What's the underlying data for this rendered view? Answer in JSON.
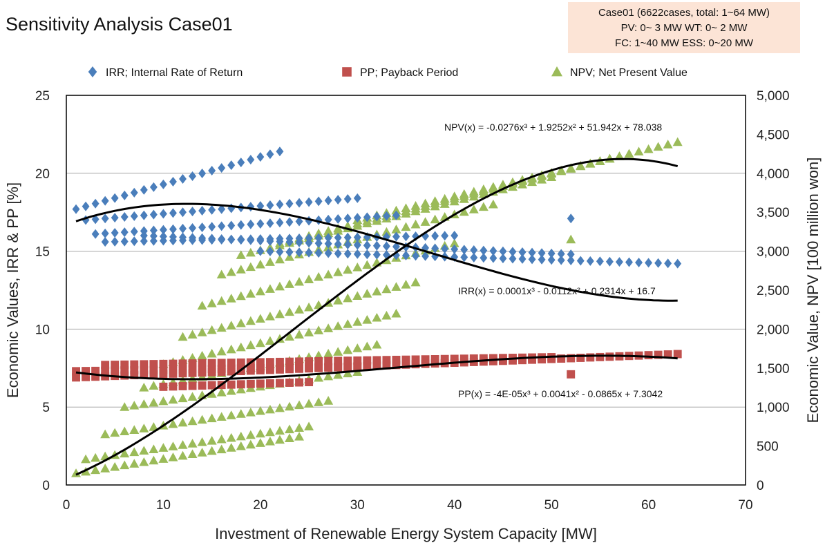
{
  "chart_data": {
    "type": "scatter",
    "title": "Sensitivity Analysis Case01",
    "xlabel": "Investment  of Renewable Energy System Capacity [MW]",
    "ylabel_left": "Economic Values, IRR & PP [%]",
    "ylabel_right": "Economic Value, NPV [100 million won]",
    "xlim": [
      0,
      70
    ],
    "xticks": [
      0,
      10,
      20,
      30,
      40,
      50,
      60,
      70
    ],
    "ylim_left": [
      0,
      25
    ],
    "yticks_left": [
      0,
      5,
      10,
      15,
      20,
      25
    ],
    "ylim_right": [
      0,
      5000
    ],
    "yticks_right": [
      "0",
      "500",
      "1,000",
      "1,500",
      "2,000",
      "2,500",
      "3,000",
      "3,500",
      "4,000",
      "4,500",
      "5,000"
    ],
    "grid": "horizontal",
    "legend_position": "top",
    "case_box": {
      "lines": [
        "Case01 (6622cases, total: 1~64 MW)",
        "PV: 0~ 3 MW      WT: 0~ 2 MW",
        "FC: 1~40 MW     ESS: 0~20 MW"
      ],
      "background": "#fce4d6"
    },
    "series": [
      {
        "name": "IRR; Internal Rate of Return",
        "axis": "left",
        "marker": "diamond",
        "color": "#4a7ebb",
        "bands": [
          {
            "x": [
              1,
              22
            ],
            "y": [
              17.7,
              21.4
            ]
          },
          {
            "x": [
              2,
              30
            ],
            "y": [
              17.0,
              18.4
            ]
          },
          {
            "x": [
              3,
              34
            ],
            "y": [
              16.1,
              17.3
            ]
          },
          {
            "x": [
              4,
              40
            ],
            "y": [
              15.6,
              16.0
            ]
          },
          {
            "x": [
              8,
              52
            ],
            "y": [
              16.0,
              14.8
            ]
          },
          {
            "x": [
              20,
              63
            ],
            "y": [
              15.0,
              14.2
            ]
          }
        ],
        "equation": "IRR(x) = 0.0001x³ - 0.0112x² + 0.2314x + 16.7",
        "fit": [
          0.0001,
          -0.0112,
          0.2314,
          16.7
        ],
        "outliers": [
          [
            52,
            17.1
          ]
        ]
      },
      {
        "name": "PP; Payback Period",
        "axis": "left",
        "marker": "square",
        "color": "#c0504d",
        "bands": [
          {
            "x": [
              1,
              63
            ],
            "y": [
              6.9,
              8.4
            ]
          },
          {
            "x": [
              1,
              30
            ],
            "y": [
              7.3,
              7.6
            ]
          },
          {
            "x": [
              4,
              50
            ],
            "y": [
              7.7,
              8.2
            ]
          },
          {
            "x": [
              10,
              25
            ],
            "y": [
              6.3,
              6.6
            ]
          }
        ],
        "equation": "PP(x) = -4E-05x³ + 0.0041x² - 0.0865x + 7.3042",
        "fit": [
          -4e-05,
          0.0041,
          -0.0865,
          7.3042
        ],
        "outliers": [
          [
            52,
            7.1
          ]
        ]
      },
      {
        "name": "NPV; Net Present Value",
        "axis": "right",
        "marker": "triangle",
        "color": "#9bbb59",
        "bands": [
          {
            "x": [
              1,
              24
            ],
            "y": [
              150,
              620
            ]
          },
          {
            "x": [
              2,
              25
            ],
            "y": [
              330,
              750
            ]
          },
          {
            "x": [
              4,
              27
            ],
            "y": [
              650,
              1080
            ]
          },
          {
            "x": [
              6,
              30
            ],
            "y": [
              1000,
              1450
            ]
          },
          {
            "x": [
              8,
              32
            ],
            "y": [
              1250,
              1800
            ]
          },
          {
            "x": [
              10,
              34
            ],
            "y": [
              1550,
              2200
            ]
          },
          {
            "x": [
              12,
              36
            ],
            "y": [
              1900,
              2600
            ]
          },
          {
            "x": [
              14,
              40
            ],
            "y": [
              2300,
              3100
            ]
          },
          {
            "x": [
              16,
              44
            ],
            "y": [
              2700,
              3600
            ]
          },
          {
            "x": [
              18,
              50
            ],
            "y": [
              2950,
              3950
            ]
          },
          {
            "x": [
              22,
              58
            ],
            "y": [
              3100,
              4250
            ]
          },
          {
            "x": [
              30,
              63
            ],
            "y": [
              3400,
              4400
            ]
          }
        ],
        "equation": "NPV(x) = -0.0276x³ + 1.9252x² + 51.942x + 78.038",
        "fit": [
          -0.0276,
          1.9252,
          51.942,
          78.038
        ],
        "outliers": [
          [
            52,
            3150
          ]
        ]
      }
    ]
  }
}
